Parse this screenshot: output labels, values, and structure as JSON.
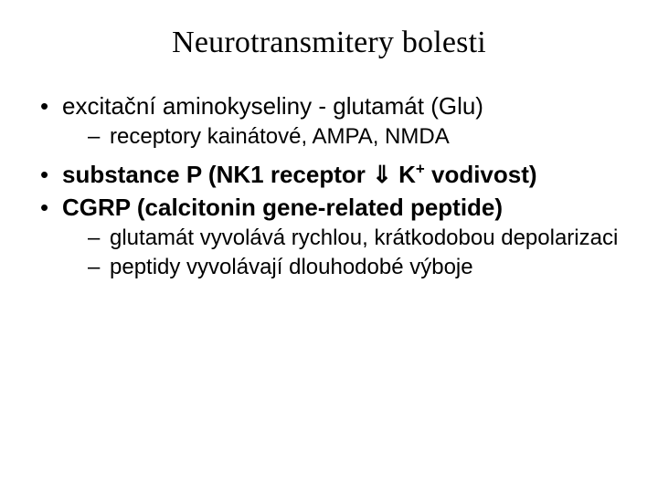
{
  "title": "Neurotransmitery bolesti",
  "bullets": {
    "b1": {
      "pre": "excitační aminokyseliny - ",
      "em": "glutamát",
      "post": " (Glu)",
      "sub": "receptory kainátové, AMPA, NMDA"
    },
    "b2": {
      "em": "substance P",
      "mid": " (NK1 receptor ",
      "arrow": "⇓",
      "k": " K",
      "sup": "+",
      "post": " vodivost)"
    },
    "b3": {
      "em": "CGRP",
      "post": " (calcitonin gene-related peptide)",
      "sub1": "glutamát vyvolává rychlou, krátkodobou depolarizaci",
      "sub2": "peptidy vyvolávají dlouhodobé výboje"
    }
  },
  "colors": {
    "background": "#ffffff",
    "text": "#000000"
  },
  "fonts": {
    "title_family": "Times New Roman",
    "body_family": "Arial",
    "title_size_pt": 26,
    "body_size_pt": 20,
    "sub_size_pt": 18
  }
}
